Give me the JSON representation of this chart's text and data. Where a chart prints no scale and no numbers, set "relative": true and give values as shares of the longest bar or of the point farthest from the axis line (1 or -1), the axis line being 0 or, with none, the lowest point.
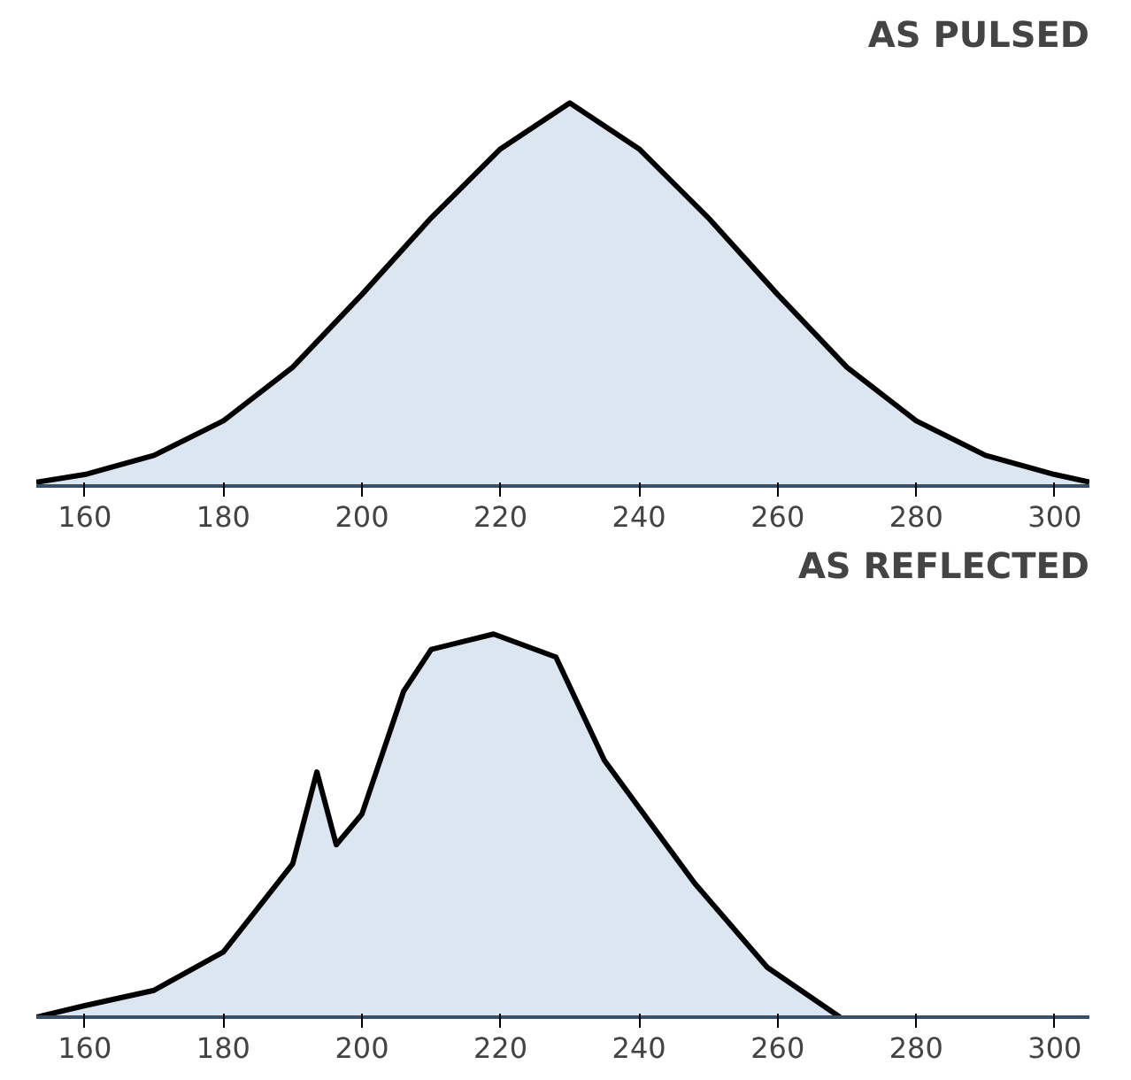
{
  "chart_data": [
    {
      "type": "area",
      "relative": true,
      "title": "AS PULSED",
      "color": "#dce6f1",
      "grid": false,
      "xlim": [
        153,
        305
      ],
      "xticks": [
        160,
        180,
        200,
        220,
        240,
        260,
        280,
        300
      ],
      "x": [
        153,
        160,
        170,
        180,
        190,
        200,
        210,
        220,
        230,
        240,
        250,
        260,
        270,
        280,
        290,
        300,
        305
      ],
      "values": [
        0.01,
        0.03,
        0.08,
        0.17,
        0.31,
        0.5,
        0.7,
        0.88,
        1.0,
        0.88,
        0.7,
        0.5,
        0.31,
        0.17,
        0.08,
        0.03,
        0.01
      ]
    },
    {
      "type": "area",
      "relative": true,
      "title": "AS REFLECTED",
      "color": "#dce6f1",
      "grid": false,
      "xlim": [
        153,
        305
      ],
      "xticks": [
        160,
        180,
        200,
        220,
        240,
        260,
        280,
        300
      ],
      "x": [
        153,
        160,
        170,
        180,
        190,
        193.5,
        196.3,
        200,
        206,
        210,
        219,
        228,
        235,
        248,
        258.5,
        269
      ],
      "values": [
        0.0,
        0.03,
        0.07,
        0.17,
        0.4,
        0.64,
        0.45,
        0.53,
        0.85,
        0.96,
        1.0,
        0.94,
        0.67,
        0.35,
        0.13,
        0.0
      ]
    }
  ]
}
